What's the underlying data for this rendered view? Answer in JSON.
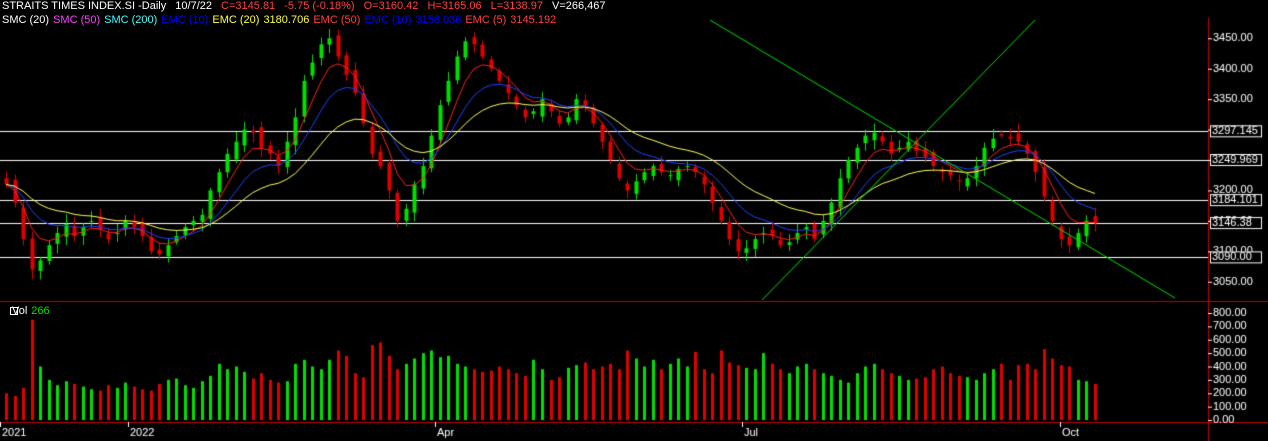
{
  "header": {
    "symbol": "STRAITS TIMES INDEX.SI -Daily",
    "date": "10/7/22",
    "close": "C=3145.81",
    "change": "-5.75 (-0.18%)",
    "open": "O=3160.42",
    "high": "H=3165.06",
    "low": "L=3138.97",
    "volume": "V=266,467"
  },
  "indicators": [
    {
      "label": "SMC (20)",
      "color": "#ffffff"
    },
    {
      "label": "SMC (50)",
      "color": "#ff40ff"
    },
    {
      "label": "SMC (200)",
      "color": "#40ffff"
    },
    {
      "label": "EMC (10)",
      "color": "#0000ff"
    },
    {
      "label": "EMC (20)",
      "color": "#ffff40"
    },
    {
      "label": "3180.706",
      "color": "#ffff40"
    },
    {
      "label": "EMC (50)",
      "color": "#ff4040"
    },
    {
      "label": "EMC (10)",
      "color": "#0000ff"
    },
    {
      "label": "3156.036",
      "color": "#0000ff"
    },
    {
      "label": "EMC (5)",
      "color": "#ff4040"
    },
    {
      "label": "3145.192",
      "color": "#ff4040"
    }
  ],
  "volume_panel": {
    "label": "Vol",
    "value": "266"
  },
  "colors": {
    "up": "#00e000",
    "down": "#e00000",
    "ema5": "#ff2020",
    "ema10": "#2040ff",
    "ema20": "#ffff60",
    "trendline": "#00e000",
    "hline": "#ffffff",
    "frame": "#c00000"
  },
  "chart_data": {
    "type": "candlestick",
    "price_axis": {
      "ticks": [
        3050,
        3100,
        3150,
        3200,
        3250,
        3300,
        3350,
        3400,
        3450
      ],
      "tick_labels": [
        "3050.00",
        "3100.00",
        "3150.00",
        "3200.00",
        "3250.00",
        "3300.00",
        "3350.00",
        "3400.00",
        "3450.00"
      ],
      "range": [
        3020,
        3480
      ]
    },
    "volume_axis": {
      "ticks": [
        0,
        100,
        200,
        300,
        400,
        500,
        600,
        700,
        800
      ],
      "tick_labels": [
        "0.00",
        "100.00",
        "200.00",
        "300.00",
        "400.00",
        "500.00",
        "600.00",
        "700.00",
        "800.00"
      ],
      "range": [
        0,
        860
      ]
    },
    "x_labels": [
      "2021",
      "2022",
      "Apr",
      "Jul",
      "Oct"
    ],
    "horizontal_levels": [
      3297.145,
      3249.969,
      3184.101,
      3146.38,
      3090.0
    ],
    "horizontal_level_labels": [
      "3297.145",
      "3249.969",
      "3184.101",
      "3146.38",
      "3090.00"
    ],
    "closes": [
      3210,
      3180,
      3120,
      3070,
      3085,
      3110,
      3130,
      3145,
      3125,
      3140,
      3150,
      3135,
      3120,
      3130,
      3150,
      3140,
      3125,
      3100,
      3095,
      3110,
      3125,
      3140,
      3150,
      3160,
      3200,
      3230,
      3260,
      3280,
      3300,
      3295,
      3270,
      3260,
      3240,
      3280,
      3320,
      3380,
      3410,
      3440,
      3450,
      3420,
      3390,
      3360,
      3310,
      3260,
      3240,
      3200,
      3150,
      3170,
      3210,
      3240,
      3290,
      3340,
      3380,
      3420,
      3445,
      3440,
      3420,
      3400,
      3380,
      3360,
      3340,
      3320,
      3330,
      3350,
      3330,
      3310,
      3320,
      3350,
      3340,
      3310,
      3280,
      3250,
      3220,
      3200,
      3215,
      3230,
      3240,
      3230,
      3225,
      3235,
      3240,
      3230,
      3210,
      3180,
      3150,
      3120,
      3100,
      3105,
      3120,
      3130,
      3125,
      3110,
      3115,
      3130,
      3140,
      3120,
      3150,
      3180,
      3220,
      3250,
      3270,
      3290,
      3295,
      3280,
      3260,
      3270,
      3280,
      3265,
      3255,
      3240,
      3230,
      3225,
      3215,
      3220,
      3240,
      3270,
      3285,
      3290,
      3285,
      3280,
      3260,
      3230,
      3190,
      3150,
      3120,
      3110,
      3130,
      3150,
      3146
    ],
    "volumes": [
      200,
      180,
      240,
      750,
      400,
      300,
      260,
      290,
      270,
      250,
      230,
      220,
      260,
      240,
      280,
      250,
      230,
      220,
      270,
      300,
      310,
      260,
      240,
      290,
      330,
      420,
      380,
      400,
      360,
      310,
      350,
      300,
      280,
      290,
      420,
      450,
      400,
      380,
      450,
      520,
      480,
      350,
      320,
      560,
      580,
      480,
      380,
      420,
      460,
      500,
      520,
      470,
      480,
      420,
      400,
      380,
      360,
      370,
      400,
      380,
      350,
      330,
      450,
      380,
      300,
      320,
      390,
      410,
      430,
      380,
      400,
      420,
      380,
      520,
      460,
      400,
      450,
      380,
      420,
      460,
      400,
      510,
      380,
      350,
      520,
      430,
      410,
      390,
      380,
      500,
      420,
      380,
      350,
      400,
      420,
      380,
      350,
      330,
      300,
      280,
      350,
      400,
      420,
      380,
      350,
      330,
      300,
      310,
      320,
      380,
      400,
      350,
      330,
      320,
      300,
      350,
      380,
      420,
      300,
      410,
      420,
      380,
      530,
      460,
      410,
      400,
      300,
      290,
      270
    ]
  }
}
